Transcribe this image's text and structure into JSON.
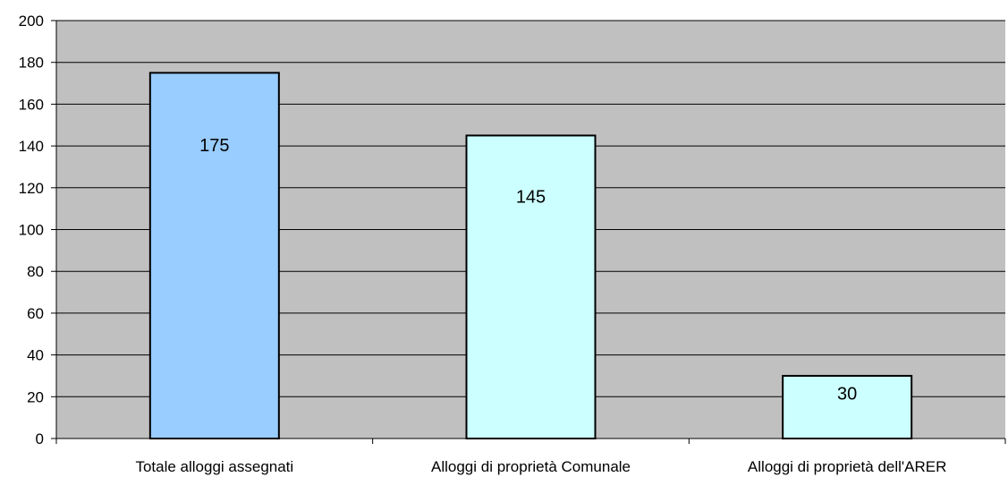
{
  "chart_data": {
    "type": "bar",
    "title": "",
    "xlabel": "",
    "ylabel": "",
    "categories": [
      "Totale alloggi assegnati",
      "Alloggi di proprietà Comunale",
      "Alloggi di proprietà dell'ARER"
    ],
    "values": [
      175,
      145,
      30
    ],
    "value_labels": [
      "175",
      "145",
      "30"
    ],
    "ylim": [
      0,
      200
    ],
    "yticks": [
      0,
      20,
      40,
      60,
      80,
      100,
      120,
      140,
      160,
      180,
      200
    ],
    "ytick_labels": [
      "0",
      "20",
      "40",
      "60",
      "80",
      "100",
      "120",
      "140",
      "160",
      "180",
      "200"
    ],
    "grid": true,
    "legend": "none",
    "colors": {
      "plot_background": "#c0c0c0",
      "bar_fills": [
        "#99ccff",
        "#ccffff",
        "#ccffff"
      ],
      "bar_stroke": "#000000",
      "grid": "#000000"
    }
  }
}
